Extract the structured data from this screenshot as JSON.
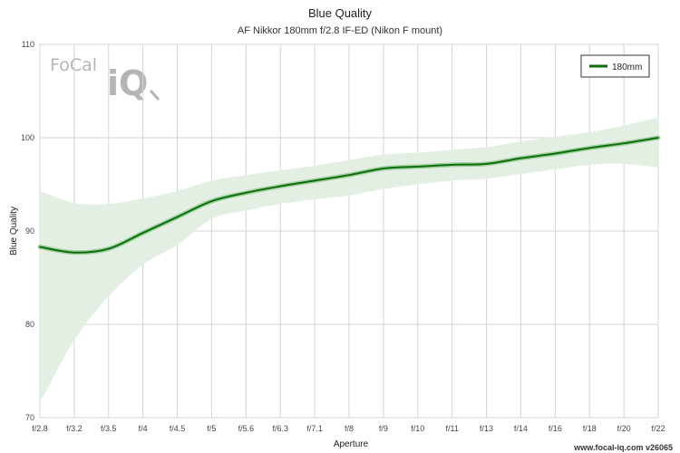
{
  "chart_data": {
    "type": "line",
    "title": "Blue Quality",
    "subtitle": "AF Nikkor 180mm f/2.8 IF-ED (Nikon F mount)",
    "xlabel": "Aperture",
    "ylabel": "Blue Quality",
    "ylim": [
      70,
      110
    ],
    "yticks": [
      70,
      80,
      90,
      100,
      110
    ],
    "grid": true,
    "legend_position": "top-right",
    "categories": [
      "f/2.8",
      "f/3.2",
      "f/3.5",
      "f/4",
      "f/4.5",
      "f/5",
      "f/5.6",
      "f/6.3",
      "f/7.1",
      "f/8",
      "f/9",
      "f/10",
      "f/11",
      "f/13",
      "f/14",
      "f/16",
      "f/18",
      "f/20",
      "f/22"
    ],
    "series": [
      {
        "name": "180mm",
        "values": [
          88.3,
          87.7,
          88.1,
          89.8,
          91.5,
          93.2,
          94.1,
          94.8,
          95.4,
          96.0,
          96.7,
          96.9,
          97.1,
          97.2,
          97.8,
          98.3,
          98.9,
          99.4,
          100.0
        ],
        "upper": [
          94.3,
          93.0,
          92.9,
          93.5,
          94.3,
          95.4,
          96.0,
          96.5,
          97.0,
          97.6,
          98.2,
          98.4,
          98.7,
          99.0,
          99.6,
          100.1,
          100.6,
          101.3,
          102.2
        ],
        "lower": [
          71.6,
          78.3,
          83.0,
          86.4,
          88.5,
          91.3,
          92.2,
          92.9,
          93.4,
          93.8,
          94.5,
          95.0,
          95.4,
          95.6,
          96.1,
          96.6,
          97.1,
          97.2,
          96.8
        ],
        "color": "#0b6e0b",
        "band_color": "#e4efe4"
      }
    ]
  },
  "footer": "www.focal-iq.com  v26065",
  "logo": {
    "text_top": "FoCal",
    "text_bottom": "iQ"
  }
}
